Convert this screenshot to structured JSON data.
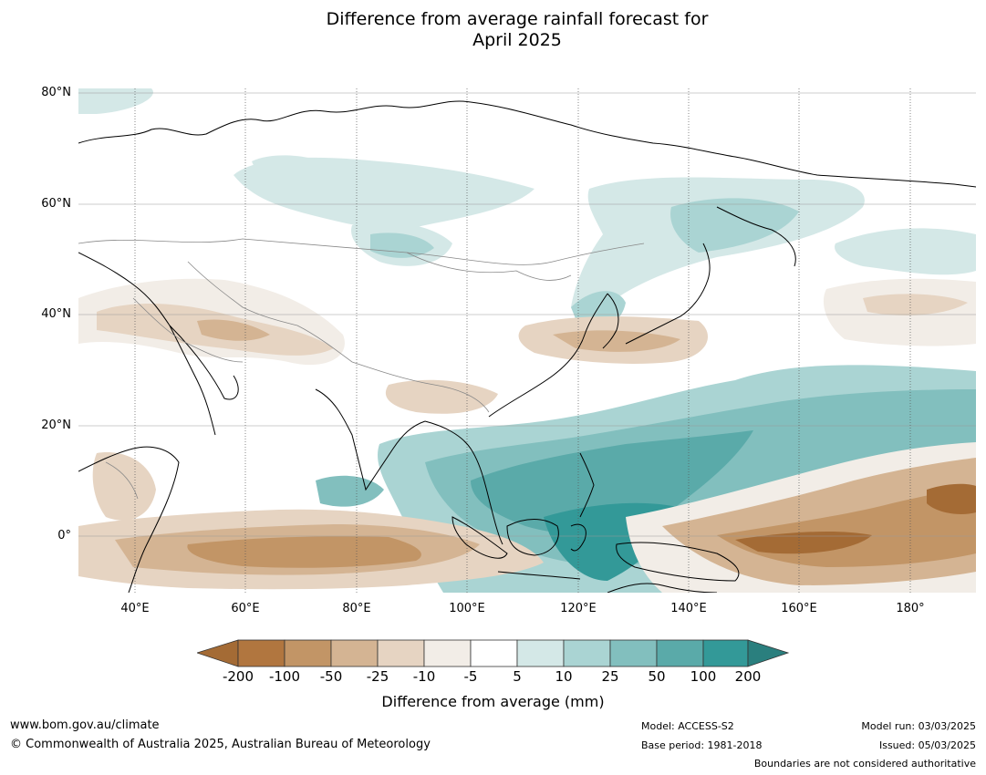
{
  "title_line1": "Difference from average rainfall forecast for",
  "title_line2": "April 2025",
  "lat_labels": [
    "80°N",
    "60°N",
    "40°N",
    "20°N",
    "0°"
  ],
  "lon_labels": [
    "40°E",
    "60°E",
    "80°E",
    "100°E",
    "120°E",
    "140°E",
    "160°E",
    "180°"
  ],
  "colorbar": {
    "ticks": [
      "-200",
      "-100",
      "-50",
      "-25",
      "-10",
      "-5",
      "5",
      "10",
      "25",
      "50",
      "100",
      "200"
    ],
    "colors": [
      "#a46b35",
      "#b1763f",
      "#c29566",
      "#d4b493",
      "#e6d4c2",
      "#f2ede7",
      "#ffffff",
      "#d4e8e7",
      "#aad4d3",
      "#82bfbe",
      "#5aaaa9",
      "#339998",
      "#2a7f7e"
    ],
    "label": "Difference from average (mm)"
  },
  "footer": {
    "website": "www.bom.gov.au/climate",
    "copyright": "© Commonwealth of Australia 2025, Australian Bureau of Meteorology",
    "model": "Model: ACCESS-S2",
    "base_period": "Base period: 1981-2018",
    "model_run": "Model run: 03/03/2025",
    "issued": "Issued: 05/03/2025",
    "disclaimer": "Boundaries are not considered authoritative"
  }
}
